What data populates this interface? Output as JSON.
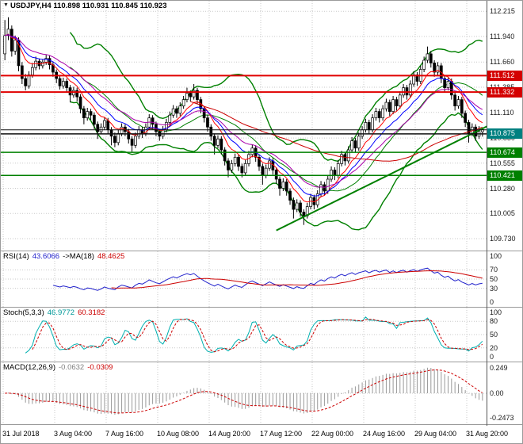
{
  "window": {
    "bg": "#ffffff",
    "grid_color": "#c9c9c9"
  },
  "main": {
    "title": "USDJPY,H4 110.898 110.931 110.845 110.923",
    "price_range": {
      "top": 112.33,
      "bottom": 109.6
    },
    "axis_labels": [
      {
        "text": "112.215",
        "price": 112.215
      },
      {
        "text": "111.940",
        "price": 111.94
      },
      {
        "text": "111.660",
        "price": 111.66
      },
      {
        "text": "111.385",
        "price": 111.385
      },
      {
        "text": "111.110",
        "price": 111.11
      },
      {
        "text": "110.830",
        "price": 110.83
      },
      {
        "text": "110.555",
        "price": 110.555
      },
      {
        "text": "110.280",
        "price": 110.28
      },
      {
        "text": "110.005",
        "price": 110.005
      },
      {
        "text": "109.730",
        "price": 109.73
      }
    ],
    "badges": [
      {
        "text": "111.512",
        "price": 111.512,
        "color": "#d40000"
      },
      {
        "text": "111.332",
        "price": 111.332,
        "color": "#d40000"
      },
      {
        "text": "110.875",
        "price": 110.875,
        "color": "#008080"
      },
      {
        "text": "110.674",
        "price": 110.674,
        "color": "#008000"
      },
      {
        "text": "110.421",
        "price": 110.421,
        "color": "#008000"
      }
    ],
    "hlines": [
      {
        "price": 111.512,
        "color": "#e00000",
        "width": 2
      },
      {
        "price": 111.332,
        "color": "#e00000",
        "width": 2
      },
      {
        "price": 110.92,
        "color": "#111111",
        "width": 1
      },
      {
        "price": 110.875,
        "color": "#111111",
        "width": 1.5
      },
      {
        "price": 110.674,
        "color": "#008000",
        "width": 1.5
      },
      {
        "price": 110.421,
        "color": "#008000",
        "width": 1.5
      }
    ],
    "trendline": {
      "i1": 79,
      "p1": 109.82,
      "i2": 148,
      "p2": 111.1,
      "color": "#008000",
      "width": 2
    }
  },
  "rsi": {
    "name": "RSI(14)",
    "value": "43.6066",
    "ma_name": "->MA(18)",
    "ma_value": "48.4625",
    "levels": [
      {
        "t": "100",
        "v": 100
      },
      {
        "t": "70",
        "v": 70
      },
      {
        "t": "50",
        "v": 50
      },
      {
        "t": "30",
        "v": 30
      },
      {
        "t": "0",
        "v": 0
      }
    ],
    "dotted_levels": [
      70,
      50,
      30
    ],
    "line_color": "#2222cc",
    "ma_color": "#cc0000"
  },
  "stoch": {
    "name": "Stoch(5,3,3)",
    "k_value": "46.9772",
    "d_value": "60.3182",
    "levels": [
      {
        "t": "100",
        "v": 100
      },
      {
        "t": "80",
        "v": 80
      },
      {
        "t": "50",
        "v": 50
      },
      {
        "t": "20",
        "v": 20
      },
      {
        "t": "0",
        "v": 0
      }
    ],
    "dotted_levels": [
      80,
      50,
      20
    ],
    "k_color": "#00b0b0",
    "d_color": "#cc0000"
  },
  "macd": {
    "name": "MACD(12,26,9)",
    "hist_value": "-0.0632",
    "signal_value": "-0.0309",
    "levels": [
      {
        "t": "0.249",
        "v": 0.249
      },
      {
        "t": "0.00",
        "v": 0
      },
      {
        "t": "-0.2473",
        "v": -0.2473
      }
    ],
    "dotted_levels": [
      0
    ],
    "range": 0.26,
    "hist_color": "#999999",
    "signal_color": "#cc0000"
  },
  "chart_data": {
    "type": "candlestick",
    "title": "USDJPY H4",
    "symbol": "USDJPY",
    "timeframe": "H4",
    "ylim": [
      109.6,
      112.33
    ],
    "x_labels": [
      "31 Jul 2018",
      "3 Aug 04:00",
      "7 Aug 16:00",
      "10 Aug 08:00",
      "14 Aug 20:00",
      "17 Aug 12:00",
      "22 Aug 00:00",
      "24 Aug 16:00",
      "29 Aug 04:00",
      "31 Aug 20:00"
    ],
    "indicators": {
      "bollinger": {
        "period": 20,
        "dev": 2,
        "color": "#008000"
      },
      "ma": [
        {
          "period": 8,
          "type": "ema",
          "color": "#ff0000"
        },
        {
          "period": 13,
          "type": "ema",
          "color": "#0000ff"
        },
        {
          "period": 21,
          "type": "ema",
          "color": "#aa00aa"
        },
        {
          "period": 55,
          "type": "sma",
          "color": "#cc0000"
        }
      ],
      "rsi": {
        "period": 14,
        "ma_period": 18
      },
      "stoch": {
        "k": 5,
        "slowing": 3,
        "d": 3
      },
      "macd": {
        "fast": 12,
        "slow": 26,
        "signal": 9
      }
    },
    "candle_colors": {
      "up_fill": "#ffffff",
      "down_fill": "#000000",
      "outline": "#000000"
    },
    "ohlc": [
      [
        111.75,
        112.12,
        111.68,
        111.95
      ],
      [
        111.95,
        112.15,
        111.9,
        112.02
      ],
      [
        112.02,
        112.06,
        111.72,
        111.78
      ],
      [
        111.78,
        111.95,
        111.74,
        111.9
      ],
      [
        111.9,
        111.93,
        111.56,
        111.62
      ],
      [
        111.62,
        111.66,
        111.42,
        111.48
      ],
      [
        111.48,
        111.53,
        111.35,
        111.4
      ],
      [
        111.4,
        111.56,
        111.37,
        111.52
      ],
      [
        111.52,
        111.65,
        111.49,
        111.6
      ],
      [
        111.6,
        111.72,
        111.57,
        111.67
      ],
      [
        111.67,
        111.7,
        111.58,
        111.62
      ],
      [
        111.62,
        111.69,
        111.59,
        111.66
      ],
      [
        111.66,
        111.74,
        111.63,
        111.7
      ],
      [
        111.7,
        111.73,
        111.58,
        111.63
      ],
      [
        111.63,
        111.66,
        111.5,
        111.55
      ],
      [
        111.55,
        111.58,
        111.43,
        111.48
      ],
      [
        111.48,
        111.52,
        111.36,
        111.4
      ],
      [
        111.4,
        111.49,
        111.37,
        111.45
      ],
      [
        111.45,
        111.48,
        111.33,
        111.38
      ],
      [
        111.38,
        111.41,
        111.22,
        111.3
      ],
      [
        111.3,
        111.39,
        111.27,
        111.35
      ],
      [
        111.35,
        111.38,
        111.23,
        111.28
      ],
      [
        111.28,
        111.31,
        111.1,
        111.15
      ],
      [
        111.15,
        111.18,
        110.98,
        111.05
      ],
      [
        111.05,
        111.16,
        111.02,
        111.12
      ],
      [
        111.12,
        111.15,
        111.03,
        111.08
      ],
      [
        111.08,
        111.11,
        110.93,
        110.98
      ],
      [
        110.98,
        111.01,
        110.82,
        110.9
      ],
      [
        110.9,
        110.99,
        110.87,
        110.95
      ],
      [
        110.95,
        111.06,
        110.92,
        111.02
      ],
      [
        111.02,
        111.05,
        110.87,
        110.92
      ],
      [
        110.92,
        110.95,
        110.75,
        110.85
      ],
      [
        110.85,
        110.89,
        110.73,
        110.78
      ],
      [
        110.78,
        110.92,
        110.75,
        110.88
      ],
      [
        110.88,
        110.99,
        110.85,
        110.95
      ],
      [
        110.95,
        110.98,
        110.85,
        110.9
      ],
      [
        110.9,
        110.93,
        110.77,
        110.82
      ],
      [
        110.82,
        110.85,
        110.68,
        110.75
      ],
      [
        110.75,
        110.89,
        110.72,
        110.85
      ],
      [
        110.85,
        110.96,
        110.82,
        110.92
      ],
      [
        110.92,
        110.95,
        110.83,
        110.88
      ],
      [
        110.88,
        110.99,
        110.85,
        110.95
      ],
      [
        110.95,
        111.09,
        110.92,
        111.05
      ],
      [
        111.05,
        111.08,
        110.93,
        110.98
      ],
      [
        110.98,
        111.01,
        110.85,
        110.9
      ],
      [
        110.9,
        110.93,
        110.8,
        110.85
      ],
      [
        110.85,
        110.96,
        110.82,
        110.92
      ],
      [
        110.92,
        111.04,
        110.89,
        111.0
      ],
      [
        111.0,
        111.12,
        110.97,
        111.08
      ],
      [
        111.08,
        111.19,
        111.05,
        111.15
      ],
      [
        111.15,
        111.18,
        111.05,
        111.1
      ],
      [
        111.1,
        111.22,
        111.07,
        111.18
      ],
      [
        111.18,
        111.29,
        111.15,
        111.25
      ],
      [
        111.25,
        111.38,
        111.22,
        111.32
      ],
      [
        111.32,
        111.35,
        111.23,
        111.28
      ],
      [
        111.28,
        111.42,
        111.25,
        111.35
      ],
      [
        111.35,
        111.38,
        111.2,
        111.25
      ],
      [
        111.25,
        111.28,
        111.1,
        111.15
      ],
      [
        111.15,
        111.18,
        111.0,
        111.05
      ],
      [
        111.05,
        111.08,
        110.9,
        110.95
      ],
      [
        110.95,
        110.98,
        110.8,
        110.85
      ],
      [
        110.85,
        110.88,
        110.65,
        110.75
      ],
      [
        110.75,
        110.86,
        110.72,
        110.82
      ],
      [
        110.82,
        110.85,
        110.65,
        110.7
      ],
      [
        110.7,
        110.73,
        110.53,
        110.58
      ],
      [
        110.58,
        110.61,
        110.4,
        110.48
      ],
      [
        110.48,
        110.59,
        110.45,
        110.55
      ],
      [
        110.55,
        110.66,
        110.52,
        110.62
      ],
      [
        110.62,
        110.65,
        110.47,
        110.52
      ],
      [
        110.52,
        110.55,
        110.4,
        110.45
      ],
      [
        110.45,
        110.59,
        110.42,
        110.55
      ],
      [
        110.55,
        110.69,
        110.52,
        110.65
      ],
      [
        110.65,
        110.76,
        110.62,
        110.72
      ],
      [
        110.72,
        110.75,
        110.57,
        110.62
      ],
      [
        110.62,
        110.65,
        110.47,
        110.52
      ],
      [
        110.52,
        110.55,
        110.32,
        110.42
      ],
      [
        110.42,
        110.54,
        110.39,
        110.5
      ],
      [
        110.5,
        110.62,
        110.47,
        110.58
      ],
      [
        110.58,
        110.61,
        110.43,
        110.48
      ],
      [
        110.48,
        110.51,
        110.33,
        110.38
      ],
      [
        110.38,
        110.41,
        110.2,
        110.28
      ],
      [
        110.28,
        110.39,
        110.25,
        110.35
      ],
      [
        110.35,
        110.38,
        110.2,
        110.25
      ],
      [
        110.25,
        110.28,
        110.1,
        110.15
      ],
      [
        110.15,
        110.18,
        109.95,
        110.05
      ],
      [
        110.05,
        110.16,
        110.02,
        110.12
      ],
      [
        110.12,
        110.15,
        109.97,
        110.02
      ],
      [
        110.02,
        110.05,
        109.88,
        109.98
      ],
      [
        109.98,
        110.12,
        109.95,
        110.08
      ],
      [
        110.08,
        110.22,
        110.05,
        110.18
      ],
      [
        110.18,
        110.21,
        110.05,
        110.1
      ],
      [
        110.1,
        110.26,
        110.07,
        110.22
      ],
      [
        110.22,
        110.36,
        110.19,
        110.32
      ],
      [
        110.32,
        110.35,
        110.2,
        110.25
      ],
      [
        110.25,
        110.42,
        110.22,
        110.38
      ],
      [
        110.38,
        110.52,
        110.35,
        110.48
      ],
      [
        110.48,
        110.51,
        110.37,
        110.42
      ],
      [
        110.42,
        110.59,
        110.39,
        110.55
      ],
      [
        110.55,
        110.69,
        110.52,
        110.65
      ],
      [
        110.65,
        110.68,
        110.53,
        110.58
      ],
      [
        110.58,
        110.74,
        110.55,
        110.7
      ],
      [
        110.7,
        110.84,
        110.67,
        110.8
      ],
      [
        110.8,
        110.83,
        110.67,
        110.72
      ],
      [
        110.72,
        110.89,
        110.69,
        110.85
      ],
      [
        110.85,
        110.96,
        110.82,
        110.92
      ],
      [
        110.92,
        111.04,
        110.89,
        111.0
      ],
      [
        111.0,
        111.03,
        110.87,
        110.92
      ],
      [
        110.92,
        111.09,
        110.89,
        111.05
      ],
      [
        111.05,
        111.16,
        111.02,
        111.12
      ],
      [
        111.12,
        111.15,
        111.0,
        111.05
      ],
      [
        111.05,
        111.19,
        111.02,
        111.15
      ],
      [
        111.15,
        111.26,
        111.12,
        111.22
      ],
      [
        111.22,
        111.25,
        111.07,
        111.12
      ],
      [
        111.12,
        111.29,
        111.09,
        111.25
      ],
      [
        111.25,
        111.28,
        111.13,
        111.18
      ],
      [
        111.18,
        111.34,
        111.15,
        111.3
      ],
      [
        111.3,
        111.42,
        111.27,
        111.38
      ],
      [
        111.38,
        111.41,
        111.25,
        111.3
      ],
      [
        111.3,
        111.46,
        111.27,
        111.42
      ],
      [
        111.42,
        111.56,
        111.39,
        111.52
      ],
      [
        111.52,
        111.55,
        111.4,
        111.45
      ],
      [
        111.45,
        111.62,
        111.42,
        111.58
      ],
      [
        111.58,
        111.72,
        111.55,
        111.68
      ],
      [
        111.68,
        111.83,
        111.65,
        111.75
      ],
      [
        111.75,
        111.78,
        111.6,
        111.65
      ],
      [
        111.65,
        111.68,
        111.5,
        111.55
      ],
      [
        111.55,
        111.66,
        111.52,
        111.62
      ],
      [
        111.62,
        111.65,
        111.43,
        111.48
      ],
      [
        111.48,
        111.51,
        111.33,
        111.38
      ],
      [
        111.38,
        111.49,
        111.35,
        111.45
      ],
      [
        111.45,
        111.48,
        111.25,
        111.3
      ],
      [
        111.3,
        111.33,
        111.13,
        111.18
      ],
      [
        111.18,
        111.29,
        111.15,
        111.25
      ],
      [
        111.25,
        111.28,
        111.05,
        111.1
      ],
      [
        111.1,
        111.13,
        110.95,
        111.0
      ],
      [
        111.0,
        111.03,
        110.78,
        110.88
      ],
      [
        110.88,
        110.99,
        110.85,
        110.95
      ],
      [
        110.95,
        110.98,
        110.8,
        110.85
      ],
      [
        110.85,
        110.96,
        110.82,
        110.9
      ],
      [
        110.898,
        110.931,
        110.845,
        110.923
      ]
    ]
  }
}
